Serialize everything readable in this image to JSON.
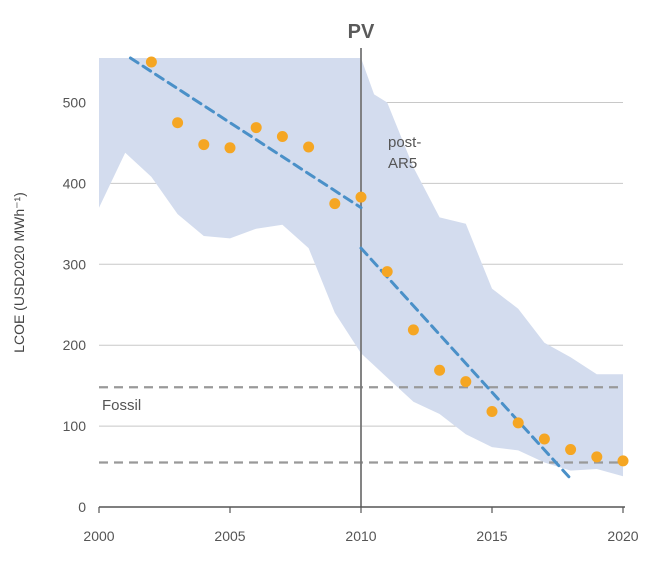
{
  "chart_data": {
    "type": "scatter",
    "title": "PV",
    "ylabel": "LCOE (USD2020 MWh⁻¹)",
    "xlabel": "",
    "xlim": [
      2000,
      2020
    ],
    "ylim": [
      0,
      555
    ],
    "x_ticks": [
      "2000",
      "2005",
      "2010",
      "2015",
      "2020"
    ],
    "x_tick_values": [
      2000,
      2005,
      2010,
      2015,
      2020
    ],
    "y_ticks": [
      "0",
      "100",
      "200",
      "300",
      "400",
      "500"
    ],
    "y_tick_values": [
      0,
      100,
      200,
      300,
      400,
      500
    ],
    "gridlines": [
      100,
      200,
      300,
      400,
      500
    ],
    "points": {
      "x": [
        2002,
        2003,
        2004,
        2005,
        2006,
        2007,
        2008,
        2009,
        2010,
        2011,
        2012,
        2013,
        2014,
        2015,
        2016,
        2017,
        2018,
        2019,
        2020
      ],
      "y": [
        550,
        475,
        448,
        444,
        469,
        458,
        445,
        375,
        383,
        291,
        219,
        169,
        155,
        118,
        104,
        84,
        71,
        62,
        57
      ],
      "color": "#f5a623"
    },
    "range_band": {
      "color": "#d3dcee",
      "x_upper": [
        2000,
        2010,
        2010.5,
        2011,
        2012,
        2013,
        2014,
        2015,
        2016,
        2017,
        2018,
        2019,
        2020
      ],
      "upper": [
        555,
        555,
        510,
        500,
        420,
        358,
        350,
        270,
        245,
        203,
        185,
        164,
        164
      ],
      "x_lower": [
        2000,
        2001,
        2002,
        2003,
        2004,
        2005,
        2006,
        2007,
        2008,
        2009,
        2010,
        2011,
        2012,
        2013,
        2014,
        2015,
        2016,
        2017,
        2018,
        2019,
        2020
      ],
      "lower": [
        370,
        438,
        408,
        362,
        335,
        332,
        344,
        349,
        320,
        240,
        190,
        160,
        130,
        115,
        90,
        74,
        70,
        55,
        45,
        47,
        38
      ]
    },
    "trend_lines": [
      {
        "name": "pre-AR5 trend",
        "x": [
          2001.2,
          2010
        ],
        "y": [
          555,
          370
        ],
        "color": "#4a90c8"
      },
      {
        "name": "post-AR5 trend",
        "x": [
          2010,
          2018
        ],
        "y": [
          320,
          35
        ],
        "color": "#4a90c8"
      }
    ],
    "fossil_range": {
      "label": "Fossil",
      "low": 55,
      "high": 148,
      "color": "#999999"
    },
    "divider": {
      "x": 2010,
      "label": "post-\nAR5",
      "label_lines": [
        "post-",
        "AR5"
      ]
    }
  }
}
